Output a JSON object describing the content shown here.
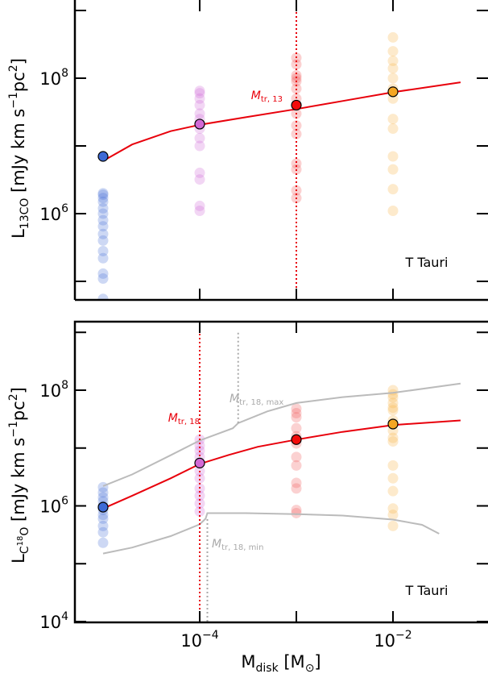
{
  "chart_data": [
    {
      "type": "scatter",
      "xscale": "log",
      "yscale": "log",
      "xlim": [
        1e-05,
        0.05
      ],
      "ylim": [
        100000.0,
        1000000000.0
      ],
      "ylabel_main": "L",
      "ylabel_sub": "13CO",
      "ylabel_unit": " [mJy km s",
      "ylabel_unit_exp": "−1",
      "ylabel_unit_tail": "pc",
      "ylabel_unit_tail_exp": "2",
      "ylabel_close": "]",
      "yticks": [
        {
          "value": 1000000.0,
          "label": "10",
          "exp": "6"
        },
        {
          "value": 100000000.0,
          "label": "10",
          "exp": "8"
        }
      ],
      "annotation": "T Tauri",
      "vline": {
        "x": 0.001,
        "color": "#e8000b",
        "label": "M",
        "label_sub": "tr, 13"
      },
      "scatter_groups": [
        {
          "x": 1e-05,
          "color": "#4a72d8",
          "values": [
            2000000.0,
            1900000.0,
            1700000.0,
            1500000.0,
            1200000.0,
            1000000.0,
            800000.0,
            650000.0,
            500000.0,
            400000.0,
            280000.0,
            220000.0,
            130000.0,
            110000.0,
            55000.0
          ]
        },
        {
          "x": 0.0001,
          "color": "#d26ad6",
          "values": [
            65000000.0,
            60000000.0,
            50000000.0,
            40000000.0,
            30000000.0,
            25000000.0,
            18000000.0,
            13000000.0,
            10000000.0,
            4000000.0,
            3200000.0,
            1300000.0,
            1100000.0
          ]
        },
        {
          "x": 0.001,
          "color": "#f25b5b",
          "values": [
            200000000.0,
            160000000.0,
            110000000.0,
            100000000.0,
            90000000.0,
            70000000.0,
            50000000.0,
            40000000.0,
            30000000.0,
            20000000.0,
            15000000.0,
            5500000.0,
            4500000.0,
            2200000.0,
            1700000.0
          ]
        },
        {
          "x": 0.01,
          "color": "#f7b449",
          "values": [
            400000000.0,
            250000000.0,
            180000000.0,
            140000000.0,
            100000000.0,
            70000000.0,
            50000000.0,
            25000000.0,
            18000000.0,
            7000000.0,
            4500000.0,
            2300000.0,
            1100000.0
          ]
        }
      ],
      "mean_points": [
        {
          "x": 1e-05,
          "y": 7000000.0,
          "color": "#3e6ad6"
        },
        {
          "x": 0.0001,
          "y": 21000000.0,
          "color": "#d26ad6"
        },
        {
          "x": 0.001,
          "y": 40000000.0,
          "color": "#f30b0b"
        },
        {
          "x": 0.01,
          "y": 63000000.0,
          "color": "#f5a623"
        }
      ],
      "fit_line": {
        "color": "#e8000b",
        "points": [
          [
            1e-05,
            6000000.0
          ],
          [
            2e-05,
            10500000.0
          ],
          [
            5e-05,
            16500000.0
          ],
          [
            0.0001,
            20500000.0
          ],
          [
            0.0003,
            26500000.0
          ],
          [
            0.001,
            35000000.0
          ],
          [
            0.003,
            46000000.0
          ],
          [
            0.01,
            62000000.0
          ],
          [
            0.05,
            87000000.0
          ]
        ]
      },
      "grey_lines": []
    },
    {
      "type": "scatter",
      "xscale": "log",
      "yscale": "log",
      "xlim": [
        1e-05,
        0.05
      ],
      "ylim": [
        10000.0,
        1000000000.0
      ],
      "ylabel_main": "L",
      "ylabel_sub": "C",
      "ylabel_sub_exp": "18",
      "ylabel_sub_tail": "O",
      "ylabel_unit": " [mJy km s",
      "ylabel_unit_exp": "−1",
      "ylabel_unit_tail": "pc",
      "ylabel_unit_tail_exp": "2",
      "ylabel_close": "]",
      "yticks": [
        {
          "value": 10000.0,
          "label": "10",
          "exp": "4"
        },
        {
          "value": 1000000.0,
          "label": "10",
          "exp": "6"
        },
        {
          "value": 100000000.0,
          "label": "10",
          "exp": "8"
        }
      ],
      "xticks": [
        {
          "value": 0.0001,
          "label": "10",
          "exp": "−4"
        },
        {
          "value": 0.01,
          "label": "10",
          "exp": "−2"
        }
      ],
      "xlabel_main": "M",
      "xlabel_sub": "disk",
      "xlabel_unit": " [M",
      "xlabel_unit_sub": "⊙",
      "xlabel_close": "]",
      "annotation": "T Tauri",
      "vline": {
        "x": 0.0001,
        "color": "#e8000b",
        "label": "M",
        "label_sub": "tr, 18"
      },
      "grey_vlines": [
        {
          "x": 0.00025,
          "y_from": 27000000.0,
          "y_to": 1000000000.0,
          "color": "#aaaaaa",
          "label": "M",
          "label_sub": "tr, 18, max"
        },
        {
          "x": 0.00012,
          "y_from": 10000.0,
          "y_to": 600000.0,
          "color": "#aaaaaa",
          "label": "M",
          "label_sub": "tr, 18, min"
        }
      ],
      "scatter_groups": [
        {
          "x": 1e-05,
          "color": "#4a72d8",
          "values": [
            2100000.0,
            1700000.0,
            1400000.0,
            1200000.0,
            1000000.0,
            850000.0,
            700000.0,
            600000.0,
            450000.0,
            350000.0,
            230000.0
          ]
        },
        {
          "x": 0.0001,
          "color": "#d26ad6",
          "values": [
            14000000.0,
            11000000.0,
            9000000.0,
            7000000.0,
            5500000.0,
            4000000.0,
            3000000.0,
            2000000.0,
            1500000.0,
            1100000.0,
            800000.0
          ]
        },
        {
          "x": 0.001,
          "color": "#f25b5b",
          "values": [
            48000000.0,
            40000000.0,
            34000000.0,
            22000000.0,
            16000000.0,
            12000000.0,
            7000000.0,
            5000000.0,
            2500000.0,
            2000000.0,
            850000.0,
            750000.0
          ]
        },
        {
          "x": 0.01,
          "color": "#f7b449",
          "values": [
            100000000.0,
            85000000.0,
            75000000.0,
            60000000.0,
            50000000.0,
            45000000.0,
            30000000.0,
            20000000.0,
            15000000.0,
            13000000.0,
            5000000.0,
            3000000.0,
            1800000.0,
            900000.0,
            700000.0,
            450000.0
          ]
        }
      ],
      "mean_points": [
        {
          "x": 1e-05,
          "y": 950000.0,
          "color": "#3e6ad6"
        },
        {
          "x": 0.0001,
          "y": 5500000.0,
          "color": "#d26ad6"
        },
        {
          "x": 0.001,
          "y": 14000000.0,
          "color": "#f30b0b"
        },
        {
          "x": 0.01,
          "y": 26000000.0,
          "color": "#f5a623"
        }
      ],
      "fit_line": {
        "color": "#e8000b",
        "points": [
          [
            1e-05,
            900000.0
          ],
          [
            2e-05,
            1500000.0
          ],
          [
            5e-05,
            3000000.0
          ],
          [
            0.0001,
            5300000.0
          ],
          [
            0.0002,
            7600000.0
          ],
          [
            0.0004,
            10500000.0
          ],
          [
            0.001,
            14000000.0
          ],
          [
            0.003,
            19000000.0
          ],
          [
            0.01,
            25000000.0
          ],
          [
            0.05,
            30000000.0
          ]
        ]
      },
      "grey_lines": [
        {
          "color": "#bbbbbb",
          "points": [
            [
              1e-05,
              2200000.0
            ],
            [
              2e-05,
              3500000.0
            ],
            [
              5e-05,
              7500000.0
            ],
            [
              0.0001,
              13500000.0
            ],
            [
              0.00022,
              22000000.0
            ],
            [
              0.00025,
              27000000.0
            ],
            [
              0.0005,
              43000000.0
            ],
            [
              0.001,
              60000000.0
            ],
            [
              0.003,
              76000000.0
            ],
            [
              0.01,
              90000000.0
            ],
            [
              0.05,
              130000000.0
            ]
          ]
        },
        {
          "color": "#bbbbbb",
          "points": [
            [
              1e-05,
              150000.0
            ],
            [
              2e-05,
              190000.0
            ],
            [
              5e-05,
              300000.0
            ],
            [
              0.0001,
              480000.0
            ],
            [
              0.000115,
              600000.0
            ],
            [
              0.00012,
              750000.0
            ],
            [
              0.0003,
              750000.0
            ],
            [
              0.001,
              720000.0
            ],
            [
              0.003,
              680000.0
            ],
            [
              0.01,
              580000.0
            ],
            [
              0.02,
              470000.0
            ],
            [
              0.03,
              330000.0
            ]
          ]
        }
      ]
    }
  ]
}
